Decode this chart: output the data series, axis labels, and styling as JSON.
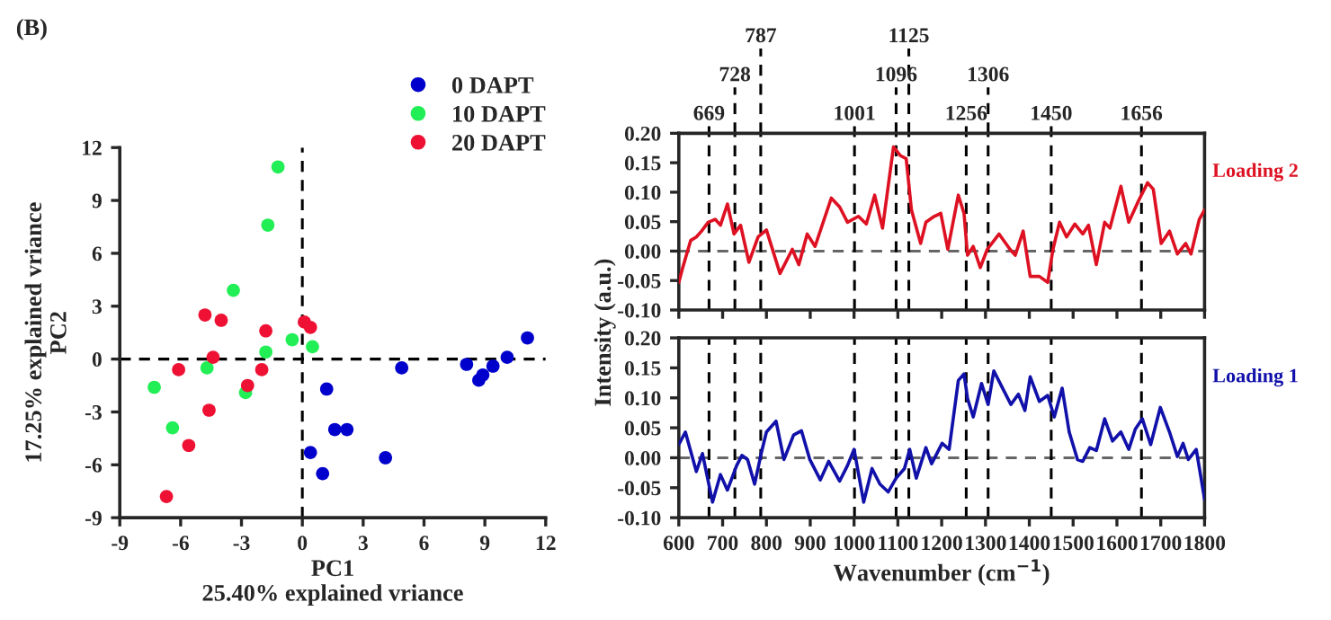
{
  "chart_data": [
    {
      "type": "scatter",
      "title": "(B)",
      "xlabel": "PC1\n25.40% explained vriance",
      "ylabel": "17.25% explained vriance\nPC2",
      "xlim": [
        -9,
        12
      ],
      "xticks": [
        -9,
        -6,
        -3,
        0,
        3,
        6,
        9,
        12
      ],
      "ylim": [
        -9,
        12
      ],
      "yticks": [
        -9,
        -6,
        -3,
        0,
        3,
        6,
        9,
        12
      ],
      "grid": false,
      "legend": "top right",
      "marker": "circle",
      "ref_lines": [
        {
          "axis": "x",
          "value": 0,
          "color": "#000000",
          "line_style": "dashed"
        },
        {
          "axis": "y",
          "value": 0,
          "color": "#000000",
          "line_style": "dashed"
        }
      ],
      "series": [
        {
          "name": "0 DAPT",
          "color": "#0000cc",
          "x": [
            11.1,
            10.1,
            9.4,
            8.9,
            8.7,
            8.1,
            4.9,
            1.2,
            1.6,
            2.2,
            4.1,
            0.4,
            1.0
          ],
          "values": [
            1.2,
            0.1,
            -0.4,
            -0.9,
            -1.2,
            -0.3,
            -0.5,
            -1.7,
            -4.0,
            -4.0,
            -5.6,
            -5.3,
            -6.5
          ]
        },
        {
          "name": "10 DAPT",
          "color": "#22ee55",
          "x": [
            -1.2,
            -1.7,
            -3.4,
            -0.5,
            0.5,
            -1.8,
            -4.7,
            -7.3,
            -2.8,
            -6.4
          ],
          "values": [
            10.9,
            7.6,
            3.9,
            1.1,
            0.7,
            0.4,
            -0.5,
            -1.6,
            -1.9,
            -3.9
          ]
        },
        {
          "name": "20 DAPT",
          "color": "#ee1133",
          "x": [
            -4.8,
            -4.0,
            0.1,
            0.4,
            -1.8,
            -4.4,
            -6.1,
            -2.0,
            -2.7,
            -4.6,
            -5.6,
            -6.7
          ],
          "values": [
            2.5,
            2.2,
            2.1,
            1.8,
            1.6,
            0.1,
            -0.6,
            -0.6,
            -1.5,
            -2.9,
            -4.9,
            -7.8
          ]
        }
      ]
    },
    {
      "type": "line",
      "xlim": [
        600,
        1800
      ],
      "xticks": [
        600,
        700,
        800,
        900,
        1000,
        1100,
        1200,
        1300,
        1400,
        1500,
        1600,
        1700,
        1800
      ],
      "ylim": [
        -0.1,
        0.2
      ],
      "yticks": [
        {
          "value": -0.1,
          "label": "-0.10"
        },
        {
          "value": -0.05,
          "label": "-0.05"
        },
        {
          "value": 0,
          "label": "0.00"
        },
        {
          "value": 0.05,
          "label": "0.05"
        },
        {
          "value": 0.1,
          "label": "0.10"
        },
        {
          "value": 0.15,
          "label": "0.15"
        },
        {
          "value": 0.2,
          "label": "0.20"
        }
      ],
      "tick_labels": "y",
      "grid": false,
      "line_style": "solid",
      "ref_lines": [
        {
          "axis": "y",
          "value": 0,
          "color": "#666666",
          "line_style": "dashed"
        },
        {
          "axis": "x",
          "value": 669,
          "label": "669",
          "color": "#000000",
          "line_style": "dashed"
        },
        {
          "axis": "x",
          "value": 728,
          "label": "728",
          "color": "#000000",
          "line_style": "dashed"
        },
        {
          "axis": "x",
          "value": 787,
          "label": "787",
          "color": "#000000",
          "line_style": "dashed"
        },
        {
          "axis": "x",
          "value": 1001,
          "label": "1001",
          "color": "#000000",
          "line_style": "dashed"
        },
        {
          "axis": "x",
          "value": 1096,
          "label": "1096",
          "color": "#000000",
          "line_style": "dashed"
        },
        {
          "axis": "x",
          "value": 1125,
          "label": "1125",
          "color": "#000000",
          "line_style": "dashed"
        },
        {
          "axis": "x",
          "value": 1256,
          "label": "1256",
          "color": "#000000",
          "line_style": "dashed"
        },
        {
          "axis": "x",
          "value": 1306,
          "label": "1306",
          "color": "#000000",
          "line_style": "dashed"
        },
        {
          "axis": "x",
          "value": 1450,
          "label": "1450",
          "color": "#000000",
          "line_style": "dashed"
        },
        {
          "axis": "x",
          "value": 1656,
          "label": "1656",
          "color": "#000000",
          "line_style": "dashed"
        }
      ],
      "series": [
        {
          "name": "Loading 2",
          "color": "#dd1122",
          "x": [
            600,
            609,
            627,
            640,
            652,
            667,
            683,
            695,
            711,
            726,
            741,
            760,
            781,
            800,
            831,
            859,
            874,
            893,
            911,
            948,
            967,
            985,
            1010,
            1028,
            1047,
            1065,
            1090,
            1106,
            1119,
            1131,
            1152,
            1164,
            1183,
            1198,
            1214,
            1238,
            1251,
            1259,
            1272,
            1288,
            1304,
            1331,
            1356,
            1368,
            1386,
            1402,
            1423,
            1442,
            1454,
            1469,
            1485,
            1504,
            1522,
            1535,
            1553,
            1572,
            1584,
            1609,
            1627,
            1649,
            1670,
            1683,
            1701,
            1720,
            1738,
            1757,
            1769,
            1788,
            1800
          ],
          "values": [
            -0.053,
            -0.028,
            0.018,
            0.024,
            0.034,
            0.049,
            0.054,
            0.044,
            0.08,
            0.029,
            0.044,
            -0.019,
            0.024,
            0.036,
            -0.038,
            0.003,
            -0.023,
            0.029,
            0.008,
            0.09,
            0.075,
            0.049,
            0.059,
            0.046,
            0.095,
            0.039,
            0.177,
            0.162,
            0.157,
            0.07,
            0.013,
            0.049,
            0.059,
            0.064,
            0.003,
            0.095,
            0.064,
            -0.007,
            0.008,
            -0.028,
            0.003,
            0.029,
            0.003,
            -0.007,
            0.034,
            -0.043,
            -0.043,
            -0.053,
            0.003,
            0.049,
            0.024,
            0.046,
            0.029,
            0.044,
            -0.023,
            0.049,
            0.039,
            0.11,
            0.049,
            0.085,
            0.116,
            0.105,
            0.013,
            0.034,
            -0.005,
            0.013,
            -0.005,
            0.054,
            0.07
          ]
        }
      ]
    },
    {
      "type": "line",
      "xlabel": "Wavenumber (cm$^{−1}$)",
      "ylabel": "Intensity (a.u.)",
      "xlim": [
        600,
        1800
      ],
      "xticks": [
        600,
        700,
        800,
        900,
        1000,
        1100,
        1200,
        1300,
        1400,
        1500,
        1600,
        1700,
        1800
      ],
      "ylim": [
        -0.1,
        0.2
      ],
      "yticks": [
        {
          "value": -0.1,
          "label": "-0.10"
        },
        {
          "value": -0.05,
          "label": "-0.05"
        },
        {
          "value": 0,
          "label": "0.00"
        },
        {
          "value": 0.05,
          "label": "0.05"
        },
        {
          "value": 0.1,
          "label": "0.10"
        },
        {
          "value": 0.15,
          "label": "0.15"
        },
        {
          "value": 0.2,
          "label": "0.20"
        }
      ],
      "grid": false,
      "line_style": "solid",
      "ref_lines": [
        {
          "axis": "y",
          "value": 0,
          "color": "#666666",
          "line_style": "dashed"
        },
        {
          "axis": "x",
          "value": 669,
          "color": "#000000",
          "line_style": "dashed"
        },
        {
          "axis": "x",
          "value": 728,
          "color": "#000000",
          "line_style": "dashed"
        },
        {
          "axis": "x",
          "value": 787,
          "color": "#000000",
          "line_style": "dashed"
        },
        {
          "axis": "x",
          "value": 1001,
          "color": "#000000",
          "line_style": "dashed"
        },
        {
          "axis": "x",
          "value": 1096,
          "color": "#000000",
          "line_style": "dashed"
        },
        {
          "axis": "x",
          "value": 1125,
          "color": "#000000",
          "line_style": "dashed"
        },
        {
          "axis": "x",
          "value": 1256,
          "color": "#000000",
          "line_style": "dashed"
        },
        {
          "axis": "x",
          "value": 1306,
          "color": "#000000",
          "line_style": "dashed"
        },
        {
          "axis": "x",
          "value": 1450,
          "color": "#000000",
          "line_style": "dashed"
        },
        {
          "axis": "x",
          "value": 1656,
          "color": "#000000",
          "line_style": "dashed"
        }
      ],
      "series": [
        {
          "name": "Loading 1",
          "color": "#1111aa",
          "x": [
            600,
            615,
            640,
            654,
            677,
            695,
            711,
            732,
            744,
            757,
            773,
            788,
            800,
            822,
            840,
            862,
            880,
            899,
            923,
            942,
            967,
            985,
            1000,
            1022,
            1041,
            1059,
            1078,
            1096,
            1115,
            1127,
            1142,
            1164,
            1177,
            1201,
            1217,
            1238,
            1251,
            1259,
            1272,
            1291,
            1306,
            1319,
            1337,
            1358,
            1375,
            1390,
            1402,
            1423,
            1442,
            1457,
            1475,
            1491,
            1510,
            1522,
            1538,
            1553,
            1572,
            1590,
            1609,
            1627,
            1642,
            1658,
            1677,
            1699,
            1720,
            1738,
            1751,
            1763,
            1781,
            1800
          ],
          "values": [
            0.022,
            0.043,
            -0.023,
            0.007,
            -0.074,
            -0.028,
            -0.054,
            -0.013,
            0.004,
            -0.003,
            -0.044,
            0.007,
            0.043,
            0.061,
            -0.003,
            0.038,
            0.045,
            -0.003,
            -0.037,
            -0.006,
            -0.039,
            -0.013,
            0.014,
            -0.074,
            -0.018,
            -0.044,
            -0.057,
            -0.034,
            -0.018,
            0.014,
            -0.034,
            0.017,
            -0.01,
            0.024,
            0.014,
            0.129,
            0.14,
            0.099,
            0.068,
            0.124,
            0.089,
            0.145,
            0.119,
            0.089,
            0.106,
            0.079,
            0.135,
            0.094,
            0.104,
            0.068,
            0.116,
            0.043,
            -0.003,
            -0.006,
            0.017,
            0.012,
            0.065,
            0.028,
            0.043,
            0.014,
            0.048,
            0.065,
            0.022,
            0.084,
            0.043,
            0.002,
            0.024,
            -0.003,
            0.014,
            -0.069
          ]
        }
      ]
    }
  ]
}
